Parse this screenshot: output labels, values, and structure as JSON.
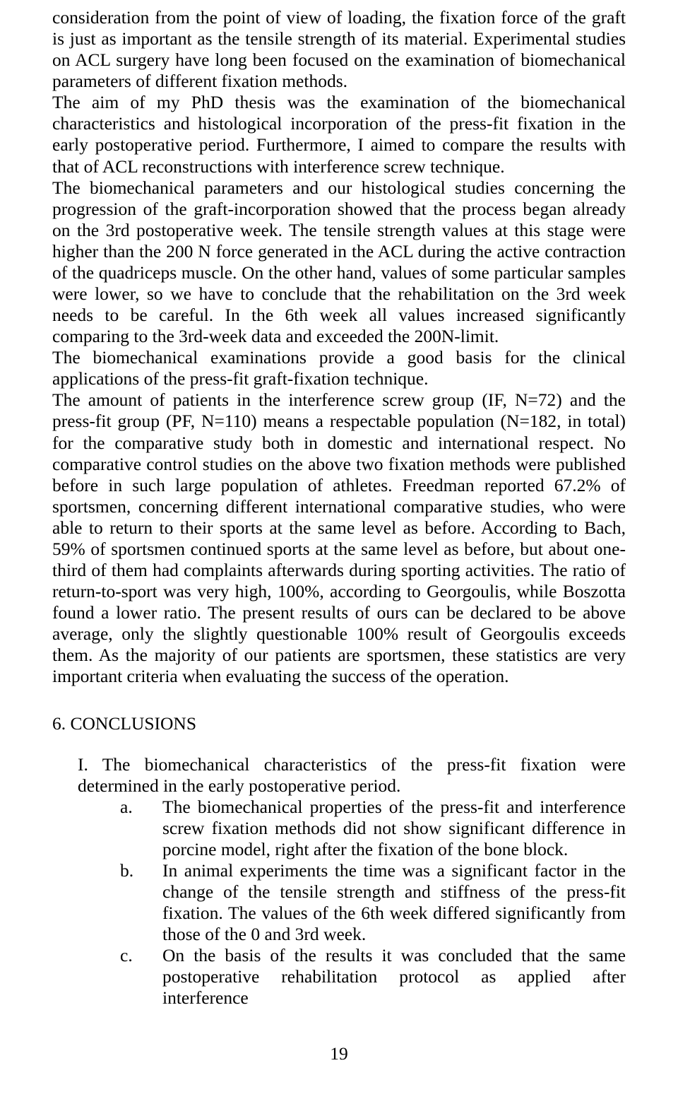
{
  "body": {
    "p1": "consideration from the point of view of loading, the fixation force of the graft is just as important as the tensile strength of its material. Experimental studies on ACL surgery have long been focused on the examination of biomechanical parameters of different fixation methods.",
    "p2": "The aim of my PhD thesis was the examination of the biomechanical characteristics and histological incorporation of the press-fit fixation in the early postoperative period. Furthermore, I aimed to compare the results with that of ACL reconstructions with interference screw technique.",
    "p3": "The biomechanical parameters and our histological studies concerning the progression of the graft-incorporation showed that the process began already on the 3rd postoperative week. The tensile strength values at this stage were higher than the 200 N force generated in the ACL during the active contraction of the quadriceps muscle. On the other hand, values of some particular samples were lower, so we have to conclude that the rehabilitation on the 3rd week needs to be careful. In the 6th week all values increased significantly comparing to the 3rd-week data and exceeded the 200N-limit.",
    "p4": "The biomechanical examinations provide a good basis for the clinical applications of the press-fit graft-fixation technique.",
    "p5": "The amount of patients in the interference screw group (IF, N=72) and the press-fit group (PF, N=110) means a respectable population (N=182, in total) for the comparative study both in domestic and international respect. No comparative control studies on the above two fixation methods were published before in such large population of athletes. Freedman reported 67.2% of sportsmen, concerning different international comparative studies, who were able to return to their sports at the same level as before. According to Bach, 59% of sportsmen continued sports at the same level as before, but about one-third of them had complaints afterwards during sporting activities. The ratio of return-to-sport was very high, 100%, according to Georgoulis, while Boszotta found a lower ratio. The present results of ours can be declared to be above average, only the slightly questionable 100% result of Georgoulis exceeds them. As the majority of our patients are sportsmen, these statistics are very important criteria when evaluating the success of the operation."
  },
  "conclusions": {
    "heading": "6. CONCLUSIONS",
    "item_I_marker": "I. ",
    "item_I_text": "The biomechanical characteristics of the press-fit fixation were determined in the early postoperative period.",
    "sub_a_marker": "a.",
    "sub_a_text": "The biomechanical properties of the press-fit and interference screw fixation methods did not show significant difference in porcine model, right after the fixation of the bone block.",
    "sub_b_marker": "b.",
    "sub_b_text": "In animal experiments the time was a significant factor in the change of the tensile strength and stiffness of the press-fit fixation. The values of the 6th week differed significantly from those of the 0 and 3rd week.",
    "sub_c_marker": "c.",
    "sub_c_text": "On the basis of the results it was concluded that the same postoperative rehabilitation protocol as applied after interference"
  },
  "page_number": "19"
}
